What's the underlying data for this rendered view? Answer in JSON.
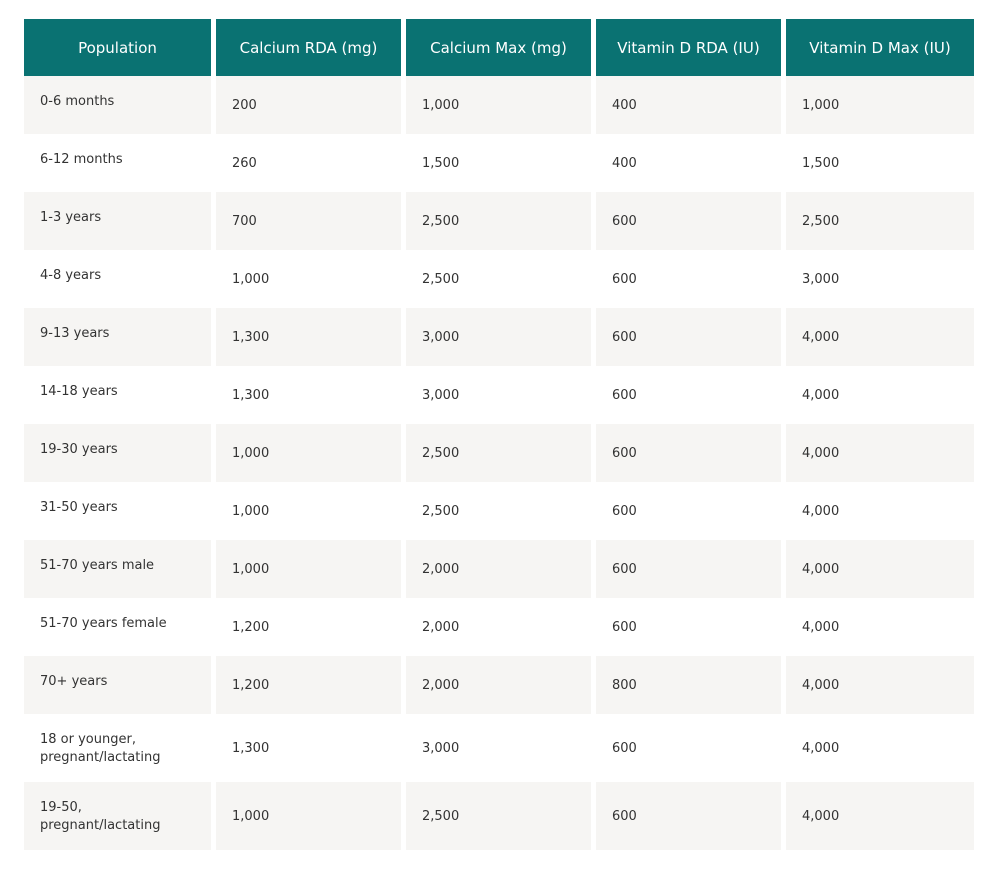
{
  "table": {
    "headers": [
      "Population",
      "Calcium RDA (mg)",
      "Calcium Max (mg)",
      "Vitamin D RDA (IU)",
      "Vitamin D Max (IU)"
    ],
    "rows": [
      {
        "population": "0-6 months",
        "calcium_rda": "200",
        "calcium_max": "1,000",
        "vitd_rda": "400",
        "vitd_max": "1,000"
      },
      {
        "population": "6-12 months",
        "calcium_rda": "260",
        "calcium_max": "1,500",
        "vitd_rda": "400",
        "vitd_max": "1,500"
      },
      {
        "population": "1-3 years",
        "calcium_rda": "700",
        "calcium_max": "2,500",
        "vitd_rda": "600",
        "vitd_max": "2,500"
      },
      {
        "population": "4-8 years",
        "calcium_rda": "1,000",
        "calcium_max": "2,500",
        "vitd_rda": "600",
        "vitd_max": "3,000"
      },
      {
        "population": "9-13 years",
        "calcium_rda": "1,300",
        "calcium_max": "3,000",
        "vitd_rda": "600",
        "vitd_max": "4,000"
      },
      {
        "population": "14-18 years",
        "calcium_rda": "1,300",
        "calcium_max": "3,000",
        "vitd_rda": "600",
        "vitd_max": "4,000"
      },
      {
        "population": "19-30 years",
        "calcium_rda": "1,000",
        "calcium_max": "2,500",
        "vitd_rda": "600",
        "vitd_max": "4,000"
      },
      {
        "population": "31-50 years",
        "calcium_rda": "1,000",
        "calcium_max": "2,500",
        "vitd_rda": "600",
        "vitd_max": "4,000"
      },
      {
        "population": "51-70 years male",
        "calcium_rda": "1,000",
        "calcium_max": "2,000",
        "vitd_rda": "600",
        "vitd_max": "4,000"
      },
      {
        "population": "51-70 years female",
        "calcium_rda": "1,200",
        "calcium_max": "2,000",
        "vitd_rda": "600",
        "vitd_max": "4,000"
      },
      {
        "population": "70+ years",
        "calcium_rda": "1,200",
        "calcium_max": "2,000",
        "vitd_rda": "800",
        "vitd_max": "4,000"
      },
      {
        "population": "18 or younger, pregnant/lactating",
        "calcium_rda": "1,300",
        "calcium_max": "3,000",
        "vitd_rda": "600",
        "vitd_max": "4,000"
      },
      {
        "population": "19-50, pregnant/lactating",
        "calcium_rda": "1,000",
        "calcium_max": "2,500",
        "vitd_rda": "600",
        "vitd_max": "4,000"
      }
    ]
  },
  "colors": {
    "header_bg": "#0a7272",
    "header_text": "#ffffff",
    "odd_row_bg": "#f6f5f3",
    "even_row_bg": "#ffffff",
    "body_text": "#333333"
  }
}
